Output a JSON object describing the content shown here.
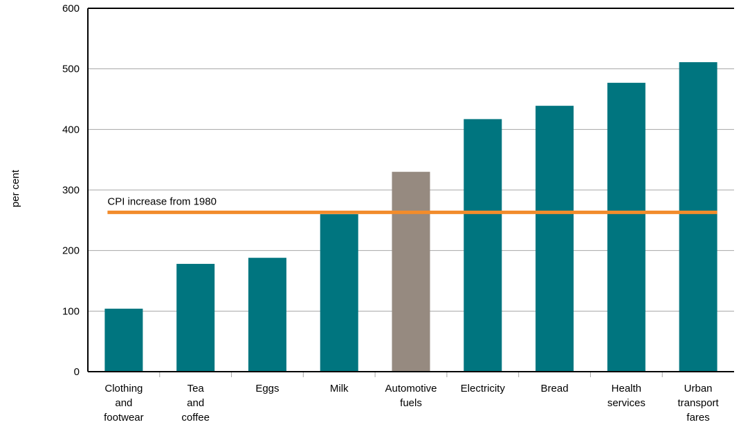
{
  "chart_data": {
    "type": "bar",
    "ylabel": "per cent",
    "xlabel": "",
    "ylim": [
      0,
      600
    ],
    "yticks": [
      0,
      100,
      200,
      300,
      400,
      500,
      600
    ],
    "grid": true,
    "categories": [
      [
        "Clothing",
        "and",
        "footwear"
      ],
      [
        "Tea",
        "and",
        "coffee"
      ],
      [
        "Eggs"
      ],
      [
        "Milk"
      ],
      [
        "Automotive",
        "fuels"
      ],
      [
        "Electricity"
      ],
      [
        "Bread"
      ],
      [
        "Health",
        "services"
      ],
      [
        "Urban",
        "transport",
        "fares"
      ]
    ],
    "values": [
      104,
      178,
      188,
      260,
      330,
      417,
      439,
      477,
      511
    ],
    "bar_colors": [
      "#00757F",
      "#00757F",
      "#00757F",
      "#00757F",
      "#968A80",
      "#00757F",
      "#00757F",
      "#00757F",
      "#00757F"
    ],
    "reference_line": {
      "label": "CPI increase from 1980",
      "value": 263,
      "color": "#F28C2B"
    }
  }
}
